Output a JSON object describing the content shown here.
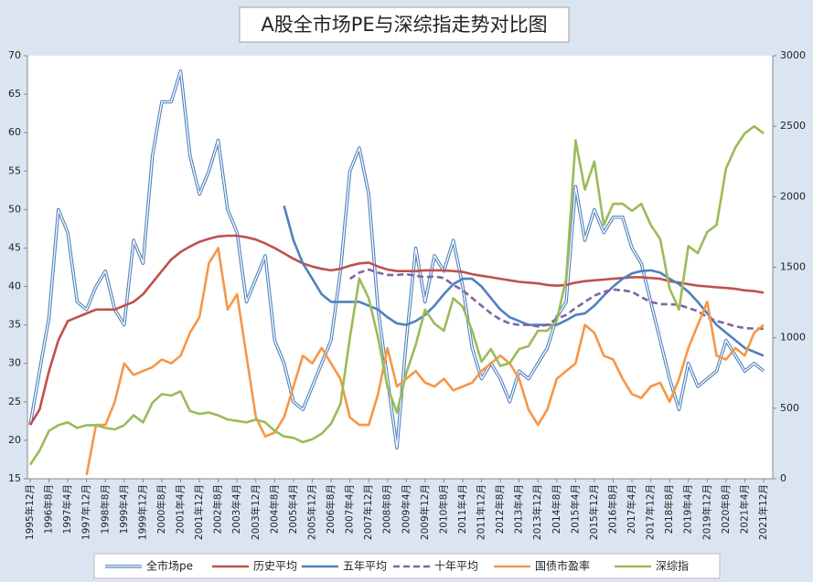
{
  "chart_data": {
    "type": "line",
    "title": "A股全市场PE与深综指走势对比图",
    "categories": [
      "1995年12月",
      null,
      "1996年8月",
      null,
      "1997年4月",
      null,
      "1997年12月",
      null,
      "1998年8月",
      null,
      "1999年4月",
      null,
      "1999年12月",
      null,
      "2000年8月",
      null,
      "2001年4月",
      null,
      "2001年12月",
      null,
      "2002年8月",
      null,
      "2003年4月",
      null,
      "2003年12月",
      null,
      "2004年8月",
      null,
      "2005年4月",
      null,
      "2005年12月",
      null,
      "2006年8月",
      null,
      "2007年4月",
      null,
      "2007年12月",
      null,
      "2008年8月",
      null,
      "2009年4月",
      null,
      "2009年12月",
      null,
      "2010年8月",
      null,
      "2011年4月",
      null,
      "2011年12月",
      null,
      "2012年8月",
      null,
      "2013年4月",
      null,
      "2013年12月",
      null,
      "2014年8月",
      null,
      "2015年4月",
      null,
      "2015年12月",
      null,
      "2016年8月",
      null,
      "2017年4月",
      null,
      "2017年12月",
      null,
      "2018年8月",
      null,
      "2019年4月",
      null,
      "2019年12月",
      null,
      "2020年8月",
      null,
      "2021年4月",
      null,
      "2021年12月"
    ],
    "ylim": [
      15,
      70
    ],
    "yticks": [
      15,
      20,
      25,
      30,
      35,
      40,
      45,
      50,
      55,
      60,
      65,
      70
    ],
    "y2lim": [
      0,
      3000
    ],
    "y2ticks": [
      0,
      500,
      1000,
      1500,
      2000,
      2500,
      3000
    ],
    "grid": false,
    "legend": "bottom",
    "series": [
      {
        "name": "全市场pe",
        "color": "#4f81bd",
        "line_style": "double",
        "values": [
          22,
          29,
          36,
          50,
          47,
          38,
          37,
          40,
          42,
          37,
          35,
          46,
          43,
          57,
          64,
          64,
          68,
          57,
          52,
          55,
          59,
          50,
          47,
          38,
          41,
          44,
          33,
          30,
          25,
          24,
          27,
          30,
          33,
          42,
          55,
          58,
          52,
          37,
          28,
          19,
          33,
          45,
          38,
          44,
          42,
          46,
          40,
          32,
          28,
          30,
          28,
          25,
          29,
          28,
          30,
          32,
          36,
          38,
          53,
          46,
          50,
          47,
          49,
          49,
          45,
          43,
          38,
          33,
          28,
          24,
          30,
          27,
          28,
          29,
          33,
          31,
          29,
          30,
          29
        ]
      },
      {
        "name": "历史平均",
        "color": "#c0504d",
        "line_style": "solid",
        "values": [
          22,
          24,
          29,
          33,
          35.5,
          36,
          36.5,
          37,
          37,
          37,
          37.5,
          38,
          39,
          40.5,
          42,
          43.5,
          44.5,
          45.2,
          45.8,
          46.2,
          46.5,
          46.6,
          46.6,
          46.4,
          46.1,
          45.6,
          45,
          44.3,
          43.6,
          43,
          42.6,
          42.3,
          42.1,
          42.3,
          42.7,
          43,
          43.1,
          42.6,
          42.2,
          42,
          42,
          42,
          42.1,
          42.1,
          42.1,
          42,
          41.9,
          41.6,
          41.4,
          41.2,
          41,
          40.8,
          40.6,
          40.5,
          40.4,
          40.2,
          40.1,
          40.2,
          40.5,
          40.7,
          40.8,
          40.9,
          41,
          41.1,
          41.2,
          41.2,
          41.1,
          41,
          40.7,
          40.5,
          40.3,
          40.1,
          40,
          39.9,
          39.8,
          39.7,
          39.5,
          39.4,
          39.2
        ]
      },
      {
        "name": "五年平均",
        "color": "#4f81bd",
        "line_style": "solid",
        "values": [
          null,
          null,
          null,
          null,
          null,
          null,
          null,
          null,
          null,
          null,
          null,
          null,
          null,
          null,
          null,
          null,
          null,
          null,
          null,
          null,
          null,
          null,
          null,
          null,
          null,
          null,
          null,
          50.5,
          46,
          43,
          41,
          39,
          38,
          38,
          38,
          38,
          37.5,
          37,
          36,
          35.2,
          35,
          35.5,
          36.3,
          37.5,
          39,
          40.3,
          41,
          41,
          40,
          38.5,
          37,
          36,
          35.5,
          35,
          35,
          35,
          35,
          35.6,
          36.3,
          36.5,
          37.5,
          38.8,
          40,
          41,
          41.7,
          42,
          42.1,
          41.8,
          41,
          40.3,
          39.3,
          38,
          36.5,
          35,
          34,
          33,
          32,
          31.5,
          31
        ]
      },
      {
        "name": "十年平均",
        "color": "#8064a2",
        "line_style": "dashed",
        "values": [
          null,
          null,
          null,
          null,
          null,
          null,
          null,
          null,
          null,
          null,
          null,
          null,
          null,
          null,
          null,
          null,
          null,
          null,
          null,
          null,
          null,
          null,
          null,
          null,
          null,
          null,
          null,
          null,
          null,
          null,
          null,
          null,
          null,
          null,
          41,
          41.8,
          42.2,
          41.8,
          41.5,
          41.5,
          41.6,
          41.4,
          41.2,
          41.3,
          41.1,
          40.2,
          39.5,
          38.5,
          37.5,
          36.5,
          35.7,
          35.2,
          35,
          35,
          34.8,
          35,
          35.8,
          36.3,
          37.2,
          38,
          38.8,
          39.3,
          39.6,
          39.5,
          39.3,
          38.6,
          38,
          37.7,
          37.7,
          37.6,
          37.2,
          36.8,
          36,
          35.5,
          35.2,
          34.8,
          34.6,
          34.5,
          34.5
        ]
      },
      {
        "name": "国债市盈率",
        "color": "#f79646",
        "line_style": "solid",
        "values": [
          22,
          null,
          null,
          null,
          null,
          null,
          15.5,
          22,
          22,
          25,
          30,
          28.5,
          29,
          29.5,
          30.5,
          30,
          31,
          34,
          36,
          43,
          45,
          37,
          39,
          31,
          23,
          20.5,
          21,
          23,
          27,
          31,
          30,
          32,
          30,
          28,
          23,
          22,
          22,
          26,
          32,
          27,
          28,
          29,
          27.5,
          27,
          28,
          26.5,
          27,
          27.5,
          29,
          30,
          31,
          30,
          28,
          24,
          22,
          24,
          28,
          29,
          30,
          35,
          34,
          31,
          30.5,
          28,
          26,
          25.5,
          27,
          27.5,
          25,
          28,
          32,
          35,
          38,
          31,
          30.5,
          32,
          31,
          34,
          35
        ]
      },
      {
        "name": "深综指",
        "color": "#9bbb59",
        "line_style": "solid",
        "axis": "y2",
        "values": [
          100,
          200,
          340,
          380,
          400,
          360,
          380,
          380,
          360,
          350,
          380,
          450,
          400,
          540,
          600,
          590,
          620,
          480,
          460,
          470,
          450,
          420,
          410,
          400,
          420,
          400,
          340,
          300,
          290,
          260,
          280,
          320,
          390,
          530,
          1000,
          1420,
          1280,
          1000,
          650,
          470,
          750,
          950,
          1200,
          1100,
          1050,
          1280,
          1220,
          1050,
          830,
          920,
          800,
          820,
          920,
          940,
          1050,
          1050,
          1120,
          1420,
          2400,
          2050,
          2250,
          1800,
          1950,
          1950,
          1900,
          1950,
          1800,
          1700,
          1350,
          1200,
          1650,
          1600,
          1750,
          1800,
          2200,
          2350,
          2450,
          2500,
          2450
        ]
      }
    ]
  }
}
